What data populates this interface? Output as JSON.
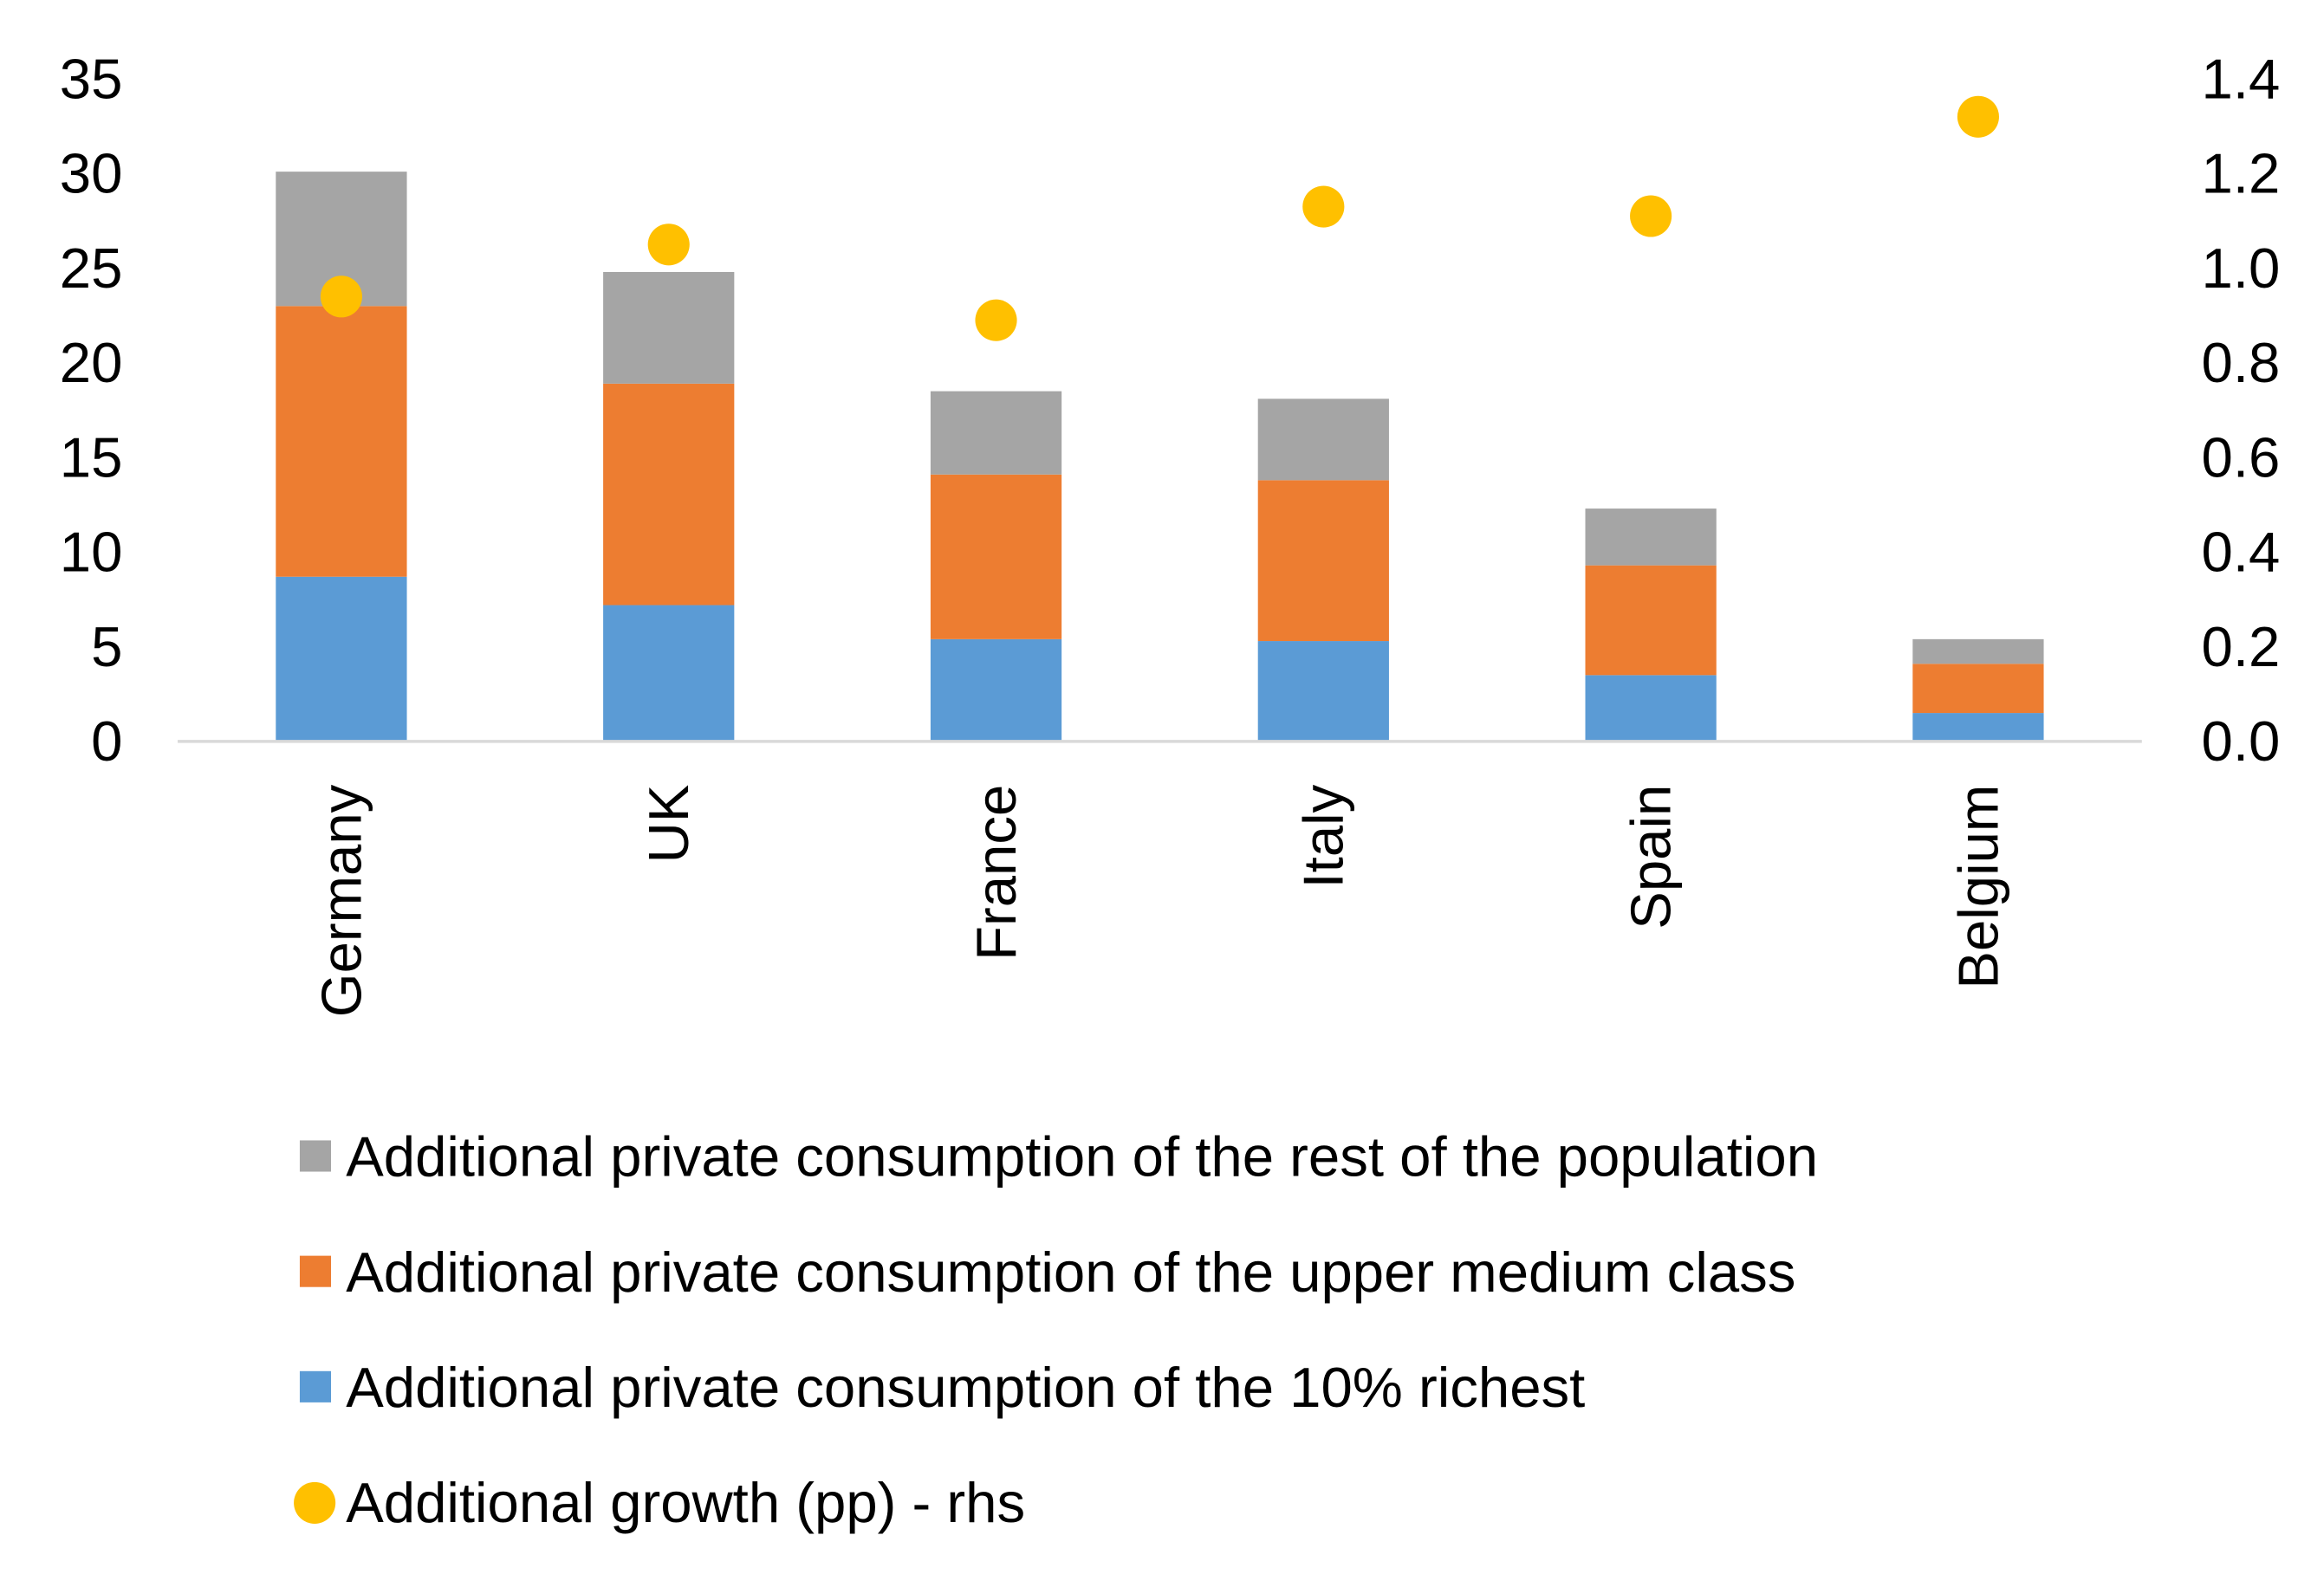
{
  "chart_data": {
    "type": "bar",
    "stacked": true,
    "categories": [
      "Germany",
      "UK",
      "France",
      "Italy",
      "Spain",
      "Belgium"
    ],
    "series": [
      {
        "name": "Additional private consumption of the 10% richest",
        "kind": "bar",
        "axis": "left",
        "color": "#5B9BD5",
        "values": [
          8.7,
          7.2,
          5.4,
          5.3,
          3.5,
          1.5
        ]
      },
      {
        "name": "Additional private consumption of the upper medium class",
        "kind": "bar",
        "axis": "left",
        "color": "#ED7D31",
        "values": [
          14.3,
          11.7,
          8.7,
          8.5,
          5.8,
          2.6
        ]
      },
      {
        "name": "Additional private consumption of the rest of the population",
        "kind": "bar",
        "axis": "left",
        "color": "#A5A5A5",
        "values": [
          7.1,
          5.9,
          4.4,
          4.3,
          3.0,
          1.3
        ]
      },
      {
        "name": "Additional growth (pp) - rhs",
        "kind": "scatter",
        "axis": "right",
        "color": "#FFC000",
        "values": [
          0.94,
          1.05,
          0.89,
          1.13,
          1.11,
          1.32
        ]
      }
    ],
    "legend_order": [
      2,
      1,
      0,
      3
    ],
    "legend_position": "bottom",
    "ylim_left": [
      0,
      35
    ],
    "yticks_left": [
      "0",
      "5",
      "10",
      "15",
      "20",
      "25",
      "30",
      "35"
    ],
    "ylim_right": [
      0,
      1.4
    ],
    "yticks_right": [
      "0.0",
      "0.2",
      "0.4",
      "0.6",
      "0.8",
      "1.0",
      "1.2",
      "1.4"
    ],
    "grid": false,
    "axis_color": "#D9D9D9"
  }
}
